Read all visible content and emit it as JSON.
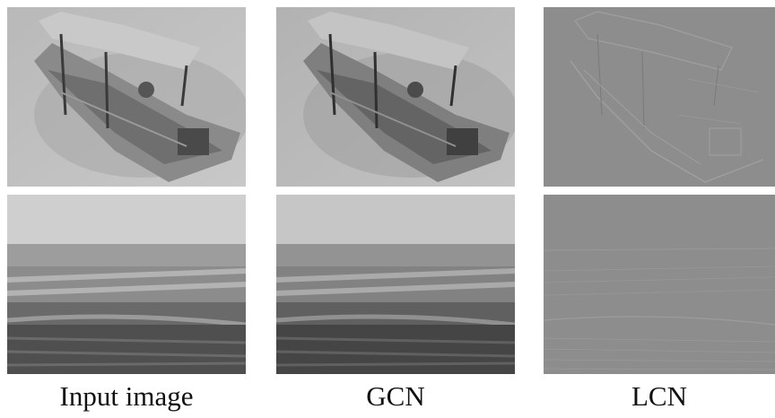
{
  "captions": {
    "input": "Input image",
    "gcn": "GCN",
    "lcn": "LCN"
  },
  "colors": {
    "background": "#ffffff",
    "lcn_gray": "#8d8d8d",
    "caption_text": "#111111"
  }
}
